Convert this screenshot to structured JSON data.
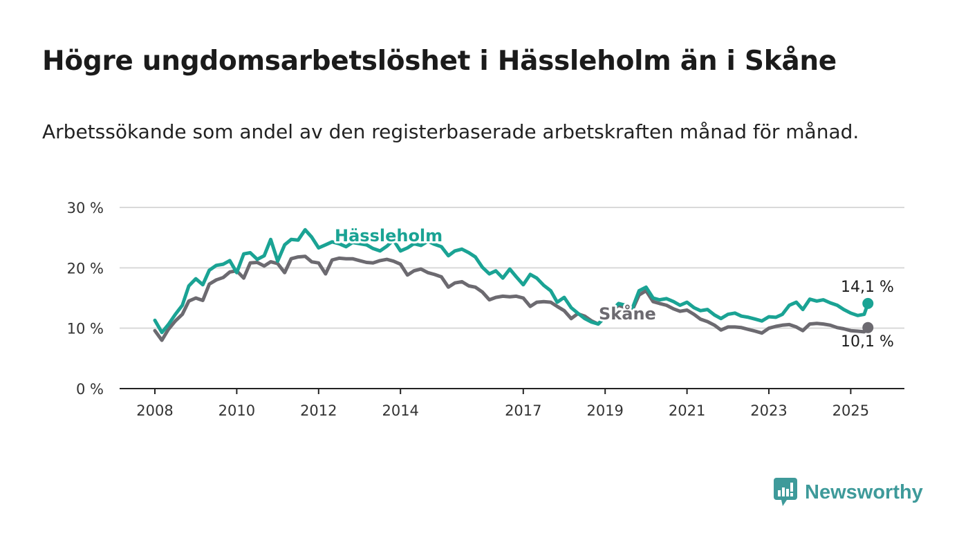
{
  "title": "Högre ungdomsarbetslöshet i Hässleholm än i Skåne",
  "subtitle": "Arbetssökande som andel av den registerbaserade arbetskraften månad för månad.",
  "brand": {
    "name": "Newsworthy"
  },
  "colors": {
    "hassleholm": "#1aa394",
    "skane": "#6c6a70",
    "grid": "#d9d9d9",
    "axis": "#222222",
    "brand": "#3e9a9a"
  },
  "chart_data": {
    "type": "line",
    "x_unit": "year",
    "xlim": [
      2008,
      2025.5
    ],
    "ylim": [
      0,
      30
    ],
    "y_ticks": [
      0,
      10,
      20,
      30
    ],
    "y_tick_labels": [
      "0 %",
      "10 %",
      "20 %",
      "30 %"
    ],
    "x_ticks": [
      2008,
      2010,
      2012,
      2014,
      2017,
      2019,
      2021,
      2023,
      2025
    ],
    "x_tick_labels": [
      "2008",
      "2010",
      "2012",
      "2014",
      "2017",
      "2019",
      "2021",
      "2023",
      "2025"
    ],
    "grid": true,
    "series": [
      {
        "name": "Hässleholm",
        "color": "#1aa394",
        "end_label": "14,1 %",
        "x": [
          2008,
          2008.17,
          2008.33,
          2008.5,
          2008.67,
          2008.83,
          2009,
          2009.17,
          2009.33,
          2009.5,
          2009.67,
          2009.83,
          2010,
          2010.17,
          2010.33,
          2010.5,
          2010.67,
          2010.83,
          2011,
          2011.17,
          2011.33,
          2011.5,
          2011.67,
          2011.83,
          2012,
          2012.17,
          2012.33,
          2012.5,
          2012.67,
          2012.83,
          2013,
          2013.17,
          2013.33,
          2013.5,
          2013.67,
          2013.83,
          2014,
          2014.17,
          2014.33,
          2014.5,
          2014.67,
          2014.83,
          2015,
          2015.17,
          2015.33,
          2015.5,
          2015.67,
          2015.83,
          2016,
          2016.17,
          2016.33,
          2016.5,
          2016.67,
          2016.83,
          2017,
          2017.17,
          2017.33,
          2017.5,
          2017.67,
          2017.83,
          2018,
          2018.17,
          2018.33,
          2018.5,
          2018.67,
          2018.83,
          2019,
          2019.17,
          2019.33,
          2019.5,
          2019.67,
          2019.83,
          2020,
          2020.17,
          2020.33,
          2020.5,
          2020.67,
          2020.83,
          2021,
          2021.17,
          2021.33,
          2021.5,
          2021.67,
          2021.83,
          2022,
          2022.17,
          2022.33,
          2022.5,
          2022.67,
          2022.83,
          2023,
          2023.17,
          2023.33,
          2023.5,
          2023.67,
          2023.83,
          2024,
          2024.17,
          2024.33,
          2024.5,
          2024.67,
          2024.83,
          2025,
          2025.17,
          2025.33,
          2025.42
        ],
        "values": [
          11.3,
          9.3,
          10.6,
          12.3,
          13.8,
          17.0,
          18.2,
          17.2,
          19.6,
          20.4,
          20.6,
          21.2,
          19.2,
          22.3,
          22.5,
          21.4,
          22.0,
          24.7,
          21.1,
          23.8,
          24.7,
          24.6,
          26.3,
          25.1,
          23.3,
          23.8,
          24.3,
          24.0,
          23.5,
          24.2,
          24.0,
          23.8,
          23.2,
          22.8,
          23.6,
          24.6,
          22.8,
          23.3,
          24.0,
          23.7,
          24.4,
          23.9,
          23.5,
          22.0,
          22.8,
          23.1,
          22.5,
          21.8,
          20.1,
          19.0,
          19.5,
          18.3,
          19.8,
          18.5,
          17.2,
          18.9,
          18.3,
          17.1,
          16.2,
          14.3,
          15.1,
          13.4,
          12.5,
          11.6,
          11.0,
          10.7,
          11.9,
          13.0,
          14.1,
          13.8,
          13.4,
          16.2,
          16.8,
          15.0,
          14.7,
          14.9,
          14.4,
          13.8,
          14.3,
          13.4,
          12.9,
          13.1,
          12.2,
          11.6,
          12.3,
          12.5,
          12.0,
          11.8,
          11.5,
          11.2,
          11.9,
          11.8,
          12.3,
          13.8,
          14.3,
          13.1,
          14.8,
          14.5,
          14.7,
          14.2,
          13.8,
          13.1,
          12.5,
          12.1,
          12.3,
          14.1
        ]
      },
      {
        "name": "Skåne",
        "color": "#6c6a70",
        "end_label": "10,1 %",
        "x": [
          2008,
          2008.17,
          2008.33,
          2008.5,
          2008.67,
          2008.83,
          2009,
          2009.17,
          2009.33,
          2009.5,
          2009.67,
          2009.83,
          2010,
          2010.17,
          2010.33,
          2010.5,
          2010.67,
          2010.83,
          2011,
          2011.17,
          2011.33,
          2011.5,
          2011.67,
          2011.83,
          2012,
          2012.17,
          2012.33,
          2012.5,
          2012.67,
          2012.83,
          2013,
          2013.17,
          2013.33,
          2013.5,
          2013.67,
          2013.83,
          2014,
          2014.17,
          2014.33,
          2014.5,
          2014.67,
          2014.83,
          2015,
          2015.17,
          2015.33,
          2015.5,
          2015.67,
          2015.83,
          2016,
          2016.17,
          2016.33,
          2016.5,
          2016.67,
          2016.83,
          2017,
          2017.17,
          2017.33,
          2017.5,
          2017.67,
          2017.83,
          2018,
          2018.17,
          2018.33,
          2018.5,
          2018.67,
          2018.83,
          2019,
          2019.17,
          2019.33,
          2019.5,
          2019.67,
          2019.83,
          2020,
          2020.17,
          2020.33,
          2020.5,
          2020.67,
          2020.83,
          2021,
          2021.17,
          2021.33,
          2021.5,
          2021.67,
          2021.83,
          2022,
          2022.17,
          2022.33,
          2022.5,
          2022.67,
          2022.83,
          2023,
          2023.17,
          2023.33,
          2023.5,
          2023.67,
          2023.83,
          2024,
          2024.17,
          2024.33,
          2024.5,
          2024.67,
          2024.83,
          2025,
          2025.17,
          2025.33,
          2025.42
        ],
        "values": [
          9.6,
          8.0,
          9.8,
          11.2,
          12.3,
          14.5,
          15.0,
          14.6,
          17.3,
          18.0,
          18.4,
          19.3,
          19.5,
          18.3,
          20.8,
          20.9,
          20.3,
          21.0,
          20.7,
          19.2,
          21.5,
          21.8,
          21.9,
          21.0,
          20.8,
          19.0,
          21.3,
          21.6,
          21.5,
          21.5,
          21.2,
          20.9,
          20.8,
          21.2,
          21.4,
          21.1,
          20.6,
          18.8,
          19.5,
          19.8,
          19.2,
          18.9,
          18.5,
          16.8,
          17.5,
          17.7,
          17.0,
          16.8,
          16.0,
          14.7,
          15.1,
          15.3,
          15.2,
          15.3,
          15.0,
          13.6,
          14.3,
          14.4,
          14.3,
          13.6,
          12.9,
          11.6,
          12.4,
          12.0,
          11.2,
          10.7,
          11.9,
          13.0,
          13.8,
          13.4,
          13.1,
          15.5,
          16.2,
          14.4,
          14.1,
          13.8,
          13.2,
          12.8,
          13.0,
          12.3,
          11.5,
          11.1,
          10.5,
          9.7,
          10.2,
          10.2,
          10.1,
          9.8,
          9.5,
          9.2,
          10.0,
          10.3,
          10.5,
          10.6,
          10.2,
          9.6,
          10.7,
          10.8,
          10.7,
          10.5,
          10.1,
          9.9,
          9.6,
          9.5,
          9.4,
          10.1
        ]
      }
    ]
  }
}
